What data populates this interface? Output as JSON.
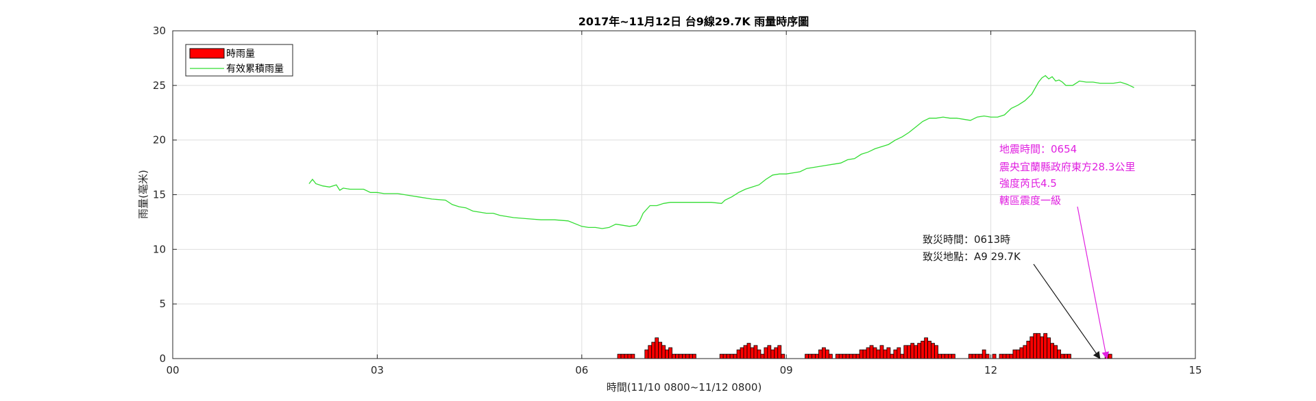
{
  "chart_data": {
    "type": "bar",
    "title": "2017年~11月12日 台9線29.7K 雨量時序圖",
    "xlabel": "時間(11/10 0800~11/12 0800)",
    "ylabel": "雨量(毫米)",
    "xlim": [
      0,
      15
    ],
    "ylim": [
      0,
      30
    ],
    "x_ticks": [
      0,
      3,
      6,
      9,
      12,
      15
    ],
    "x_tick_labels": [
      "00",
      "03",
      "06",
      "09",
      "12",
      "15"
    ],
    "y_ticks": [
      0,
      5,
      10,
      15,
      20,
      25,
      30
    ],
    "y_tick_labels": [
      "0",
      "5",
      "10",
      "15",
      "20",
      "25",
      "30"
    ],
    "grid": true,
    "legend_position": "top-left",
    "colors": {
      "bar": "#ff0000",
      "line": "#33dd33",
      "annotation_black": "#1a1a1a",
      "annotation_magenta": "#e020e0"
    },
    "series": [
      {
        "name": "時雨量",
        "kind": "bar",
        "x": [
          6.55,
          6.6,
          6.65,
          6.7,
          6.75,
          6.95,
          7.0,
          7.05,
          7.1,
          7.15,
          7.2,
          7.25,
          7.3,
          7.35,
          7.4,
          7.45,
          7.5,
          7.55,
          7.6,
          7.65,
          8.05,
          8.1,
          8.15,
          8.2,
          8.25,
          8.3,
          8.35,
          8.4,
          8.45,
          8.5,
          8.55,
          8.6,
          8.65,
          8.7,
          8.75,
          8.8,
          8.85,
          8.9,
          8.95,
          9.3,
          9.35,
          9.4,
          9.45,
          9.5,
          9.55,
          9.6,
          9.65,
          9.75,
          9.8,
          9.85,
          9.9,
          9.95,
          10.0,
          10.05,
          10.1,
          10.15,
          10.2,
          10.25,
          10.3,
          10.35,
          10.4,
          10.45,
          10.5,
          10.55,
          10.6,
          10.65,
          10.7,
          10.75,
          10.8,
          10.85,
          10.9,
          10.95,
          11.0,
          11.05,
          11.1,
          11.15,
          11.2,
          11.25,
          11.3,
          11.35,
          11.4,
          11.45,
          11.7,
          11.75,
          11.8,
          11.85,
          11.9,
          11.95,
          12.05,
          12.15,
          12.2,
          12.25,
          12.3,
          12.35,
          12.4,
          12.45,
          12.5,
          12.55,
          12.6,
          12.65,
          12.7,
          12.75,
          12.8,
          12.85,
          12.9,
          12.95,
          13.0,
          13.05,
          13.1,
          13.15,
          13.7,
          13.75
        ],
        "values": [
          0.4,
          0.4,
          0.4,
          0.4,
          0.4,
          0.8,
          1.2,
          1.5,
          1.9,
          1.5,
          1.2,
          0.8,
          1.0,
          0.4,
          0.4,
          0.4,
          0.4,
          0.4,
          0.4,
          0.4,
          0.4,
          0.4,
          0.4,
          0.4,
          0.4,
          0.8,
          1.0,
          1.2,
          1.4,
          1.0,
          1.2,
          0.8,
          0.4,
          1.0,
          1.2,
          0.8,
          1.0,
          1.2,
          0.4,
          0.4,
          0.4,
          0.4,
          0.4,
          0.8,
          1.0,
          0.8,
          0.4,
          0.4,
          0.4,
          0.4,
          0.4,
          0.4,
          0.4,
          0.4,
          0.8,
          0.8,
          1.0,
          1.2,
          1.0,
          0.8,
          1.2,
          0.8,
          1.0,
          0.4,
          0.8,
          1.0,
          0.4,
          1.2,
          1.2,
          1.4,
          1.2,
          1.4,
          1.6,
          1.9,
          1.6,
          1.4,
          1.2,
          0.4,
          0.4,
          0.4,
          0.4,
          0.4,
          0.4,
          0.4,
          0.4,
          0.4,
          0.8,
          0.4,
          0.4,
          0.4,
          0.4,
          0.4,
          0.4,
          0.8,
          0.8,
          1.0,
          1.2,
          1.6,
          2.0,
          2.3,
          2.3,
          2.0,
          2.3,
          1.9,
          1.4,
          1.2,
          0.8,
          0.4,
          0.4,
          0.4,
          0.4,
          0.4
        ]
      },
      {
        "name": "有效累積雨量",
        "kind": "line",
        "x": [
          2.0,
          2.05,
          2.1,
          2.2,
          2.3,
          2.4,
          2.45,
          2.5,
          2.6,
          2.8,
          2.9,
          3.0,
          3.1,
          3.3,
          3.4,
          3.5,
          3.6,
          3.8,
          4.0,
          4.1,
          4.2,
          4.3,
          4.4,
          4.5,
          4.6,
          4.7,
          4.8,
          5.0,
          5.2,
          5.4,
          5.6,
          5.8,
          6.0,
          6.1,
          6.2,
          6.3,
          6.4,
          6.5,
          6.6,
          6.7,
          6.8,
          6.85,
          6.9,
          7.0,
          7.1,
          7.2,
          7.3,
          7.5,
          7.7,
          7.9,
          8.05,
          8.1,
          8.2,
          8.3,
          8.4,
          8.5,
          8.6,
          8.7,
          8.8,
          8.9,
          9.0,
          9.1,
          9.2,
          9.3,
          9.4,
          9.5,
          9.6,
          9.7,
          9.8,
          9.9,
          10.0,
          10.1,
          10.2,
          10.3,
          10.4,
          10.5,
          10.6,
          10.7,
          10.8,
          10.9,
          11.0,
          11.1,
          11.2,
          11.3,
          11.4,
          11.5,
          11.6,
          11.7,
          11.8,
          11.9,
          12.0,
          12.1,
          12.2,
          12.3,
          12.4,
          12.5,
          12.6,
          12.7,
          12.75,
          12.8,
          12.85,
          12.9,
          12.95,
          13.0,
          13.05,
          13.1,
          13.2,
          13.3,
          13.4,
          13.5,
          13.6,
          13.7,
          13.8,
          13.9,
          14.0,
          14.1
        ],
        "values": [
          16.0,
          16.4,
          16.0,
          15.8,
          15.7,
          15.9,
          15.4,
          15.6,
          15.5,
          15.5,
          15.2,
          15.2,
          15.1,
          15.1,
          15.0,
          14.9,
          14.8,
          14.6,
          14.5,
          14.1,
          13.9,
          13.8,
          13.5,
          13.4,
          13.3,
          13.3,
          13.1,
          12.9,
          12.8,
          12.7,
          12.7,
          12.6,
          12.1,
          12.0,
          12.0,
          11.9,
          12.0,
          12.3,
          12.2,
          12.1,
          12.2,
          12.6,
          13.3,
          14.0,
          14.0,
          14.2,
          14.3,
          14.3,
          14.3,
          14.3,
          14.2,
          14.5,
          14.8,
          15.2,
          15.5,
          15.7,
          15.9,
          16.4,
          16.8,
          16.9,
          16.9,
          17.0,
          17.1,
          17.4,
          17.5,
          17.6,
          17.7,
          17.8,
          17.9,
          18.2,
          18.3,
          18.7,
          18.9,
          19.2,
          19.4,
          19.6,
          20.0,
          20.3,
          20.7,
          21.2,
          21.7,
          22.0,
          22.0,
          22.1,
          22.0,
          22.0,
          21.9,
          21.8,
          22.1,
          22.2,
          22.1,
          22.1,
          22.3,
          22.9,
          23.2,
          23.6,
          24.2,
          25.3,
          25.7,
          25.9,
          25.6,
          25.8,
          25.4,
          25.5,
          25.3,
          25.0,
          25.0,
          25.4,
          25.3,
          25.3,
          25.2,
          25.2,
          25.2,
          25.3,
          25.1,
          24.8
        ]
      }
    ],
    "annotations": {
      "disaster": {
        "lines": [
          "致災時間：0613時",
          "致災地點：A9 29.7K"
        ],
        "arrow_target": {
          "x": 13.6,
          "y": 0
        }
      },
      "earthquake": {
        "lines": [
          "地震時間：0654",
          "震央宜蘭縣政府東方28.3公里",
          "強度芮氏4.5",
          "轄區震度一級"
        ],
        "arrow_target": {
          "x": 13.7,
          "y": 0
        }
      }
    }
  }
}
